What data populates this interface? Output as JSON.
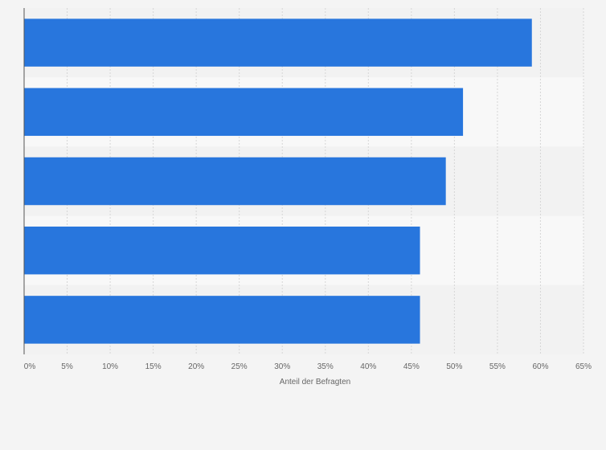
{
  "chart_data": {
    "type": "bar",
    "orientation": "horizontal",
    "categories": [
      "",
      "",
      "",
      "",
      ""
    ],
    "values": [
      59,
      51,
      49,
      46,
      46
    ],
    "xlabel": "Anteil der Befragten",
    "xlim": [
      0,
      65
    ],
    "x_ticks": [
      0,
      5,
      10,
      15,
      20,
      25,
      30,
      35,
      40,
      45,
      50,
      55,
      60,
      65
    ],
    "tick_suffix": "%",
    "grid": "vertical dashed",
    "bar_color": "#2876dd",
    "band_colors": [
      "#f2f2f2",
      "#f8f8f8"
    ],
    "background": "#f4f4f4"
  }
}
